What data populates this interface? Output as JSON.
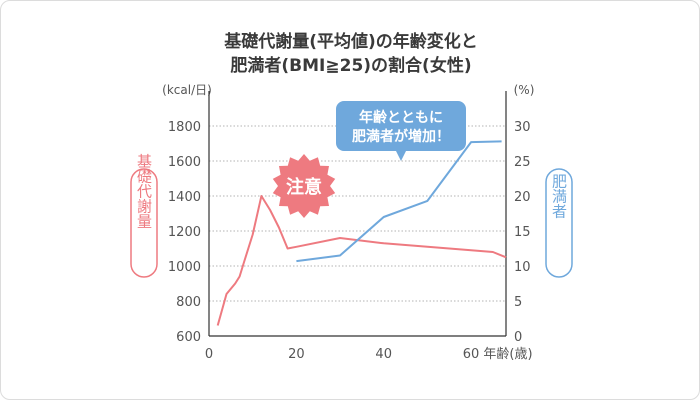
{
  "chart_data": {
    "type": "line",
    "title": [
      "基礎代謝量(平均値)の年齢変化と",
      "肥満者(BMI≧25)の割合(女性)"
    ],
    "left_axis": {
      "unit": "(kcal/日)",
      "label": "基礎代謝量",
      "ticks": [
        "600",
        "800",
        "1000",
        "1200",
        "1400",
        "1600",
        "1800"
      ],
      "range": [
        600,
        1800
      ],
      "color": "#ee7a80"
    },
    "right_axis": {
      "unit": "(%)",
      "label": "肥満者",
      "ticks": [
        "0",
        "5",
        "10",
        "15",
        "20",
        "25",
        "30"
      ],
      "range": [
        0,
        30
      ],
      "color": "#6fa8dc"
    },
    "x_axis": {
      "label": "年齢(歳)",
      "ticks": [
        "0",
        "20",
        "40",
        "60"
      ],
      "range": [
        0,
        68
      ]
    },
    "grid": true,
    "series": [
      {
        "axis": "left",
        "color": "#ee7a80",
        "x": [
          2,
          4,
          6,
          7,
          8,
          10,
          12,
          14,
          16,
          18,
          20,
          30,
          40,
          50,
          60,
          65,
          68
        ],
        "y": [
          660,
          840,
          900,
          940,
          1020,
          1180,
          1400,
          1320,
          1220,
          1100,
          1110,
          1160,
          1130,
          1110,
          1090,
          1080,
          1050
        ]
      },
      {
        "axis": "right",
        "color": "#6fa8dc",
        "x": [
          20,
          30,
          40,
          50,
          60,
          67
        ],
        "y": [
          10.7,
          11.5,
          17.0,
          19.3,
          27.7,
          27.8
        ]
      }
    ],
    "annotations": {
      "callout": [
        "年齢とともに",
        "肥満者が増加！"
      ],
      "badge": "注意"
    }
  }
}
